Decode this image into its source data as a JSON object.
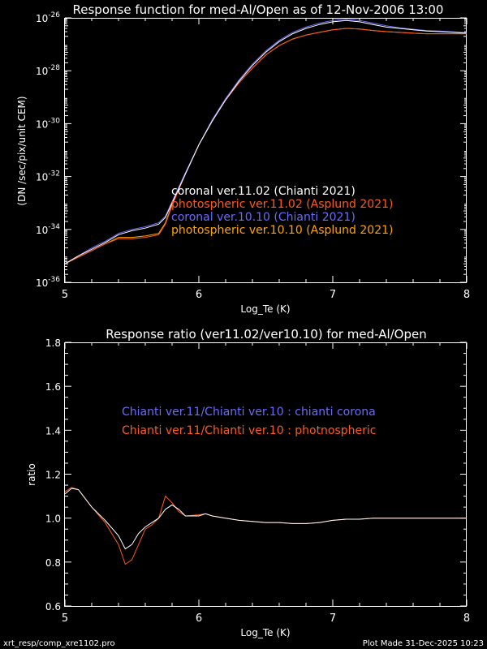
{
  "footer": {
    "left": "xrt_resp/comp_xre1102.pro",
    "right": "Plot Made 31-Dec-2025 10:23"
  },
  "chart_data": [
    {
      "type": "line",
      "title": "Response function for med-Al/Open as of 12-Nov-2006 13:00",
      "xlabel": "Log_Te (K)",
      "ylabel": "(DN /sec/pix/unit CEM)",
      "xlim": [
        5,
        8
      ],
      "ylim_log10": [
        -36,
        -26
      ],
      "yscale": "log",
      "x_ticks": [
        "5",
        "6",
        "7",
        "8"
      ],
      "y_ticks": [
        {
          "base": "10",
          "exp": "-26",
          "log10": -26
        },
        {
          "base": "10",
          "exp": "-28",
          "log10": -28
        },
        {
          "base": "10",
          "exp": "-30",
          "log10": -30
        },
        {
          "base": "10",
          "exp": "-32",
          "log10": -32
        },
        {
          "base": "10",
          "exp": "-34",
          "log10": -34
        },
        {
          "base": "10",
          "exp": "-36",
          "log10": -36
        }
      ],
      "legend": [
        {
          "label": "coronal ver.11.02 (Chianti 2021)",
          "color": "#ffffff"
        },
        {
          "label": "photospheric ver.11.02 (Asplund 2021)",
          "color": "#ff5a1e"
        },
        {
          "label": "coronal ver.10.10 (Chianti 2021)",
          "color": "#6a6aff"
        },
        {
          "label": "photospheric ver.10.10 (Asplund 2021)",
          "color": "#ffa500"
        }
      ],
      "series": [
        {
          "name": "coronal ver.11.02 (Chianti 2021)",
          "color": "#ffffff",
          "x": [
            5.0,
            5.1,
            5.2,
            5.3,
            5.4,
            5.5,
            5.6,
            5.7,
            5.75,
            5.8,
            5.9,
            6.0,
            6.1,
            6.2,
            6.3,
            6.4,
            6.5,
            6.6,
            6.7,
            6.8,
            6.9,
            7.0,
            7.1,
            7.2,
            7.3,
            7.4,
            7.5,
            7.6,
            7.7,
            7.8,
            7.9,
            8.0
          ],
          "log10_y": [
            -35.3,
            -35.0,
            -34.75,
            -34.5,
            -34.2,
            -34.05,
            -33.95,
            -33.8,
            -33.55,
            -33.0,
            -31.9,
            -30.8,
            -29.9,
            -29.1,
            -28.4,
            -27.8,
            -27.3,
            -26.9,
            -26.6,
            -26.4,
            -26.25,
            -26.15,
            -26.1,
            -26.15,
            -26.25,
            -26.35,
            -26.4,
            -26.45,
            -26.5,
            -26.52,
            -26.55,
            -26.58
          ]
        },
        {
          "name": "photospheric ver.11.02 (Asplund 2021)",
          "color": "#ff5a1e",
          "x": [
            5.0,
            5.1,
            5.2,
            5.3,
            5.4,
            5.5,
            5.6,
            5.7,
            5.75,
            5.8,
            5.9,
            6.0,
            6.1,
            6.2,
            6.3,
            6.4,
            6.5,
            6.6,
            6.7,
            6.8,
            6.9,
            7.0,
            7.1,
            7.2,
            7.3,
            7.4,
            7.5,
            7.6,
            7.7,
            7.8,
            7.9,
            8.0
          ],
          "log10_y": [
            -35.3,
            -35.05,
            -34.8,
            -34.55,
            -34.35,
            -34.35,
            -34.3,
            -34.2,
            -33.8,
            -33.1,
            -31.9,
            -30.8,
            -29.9,
            -29.1,
            -28.45,
            -27.9,
            -27.4,
            -27.05,
            -26.8,
            -26.65,
            -26.55,
            -26.45,
            -26.4,
            -26.42,
            -26.48,
            -26.52,
            -26.55,
            -26.58,
            -26.6,
            -26.6,
            -26.6,
            -26.6
          ]
        },
        {
          "name": "coronal ver.10.10 (Chianti 2021)",
          "color": "#6a6aff",
          "x": [
            5.0,
            5.1,
            5.2,
            5.3,
            5.4,
            5.5,
            5.6,
            5.7,
            5.75,
            5.8,
            5.9,
            6.0,
            6.1,
            6.2,
            6.3,
            6.4,
            6.5,
            6.6,
            6.7,
            6.8,
            6.9,
            7.0,
            7.1,
            7.2,
            7.3,
            7.4,
            7.5,
            7.6,
            7.7,
            7.8,
            7.9,
            8.0
          ],
          "log10_y": [
            -35.3,
            -35.0,
            -34.7,
            -34.45,
            -34.15,
            -34.0,
            -33.9,
            -33.75,
            -33.5,
            -32.95,
            -31.85,
            -30.8,
            -29.85,
            -29.05,
            -28.35,
            -27.75,
            -27.25,
            -26.85,
            -26.55,
            -26.35,
            -26.2,
            -26.1,
            -26.05,
            -26.1,
            -26.2,
            -26.3,
            -26.38,
            -26.43,
            -26.48,
            -26.5,
            -26.53,
            -26.56
          ]
        },
        {
          "name": "photospheric ver.10.10 (Asplund 2021)",
          "color": "#ffa500",
          "x": [
            5.0,
            5.1,
            5.2,
            5.3,
            5.4,
            5.5,
            5.6,
            5.7,
            5.75,
            5.8,
            5.9,
            6.0,
            6.1,
            6.2,
            6.3,
            6.4,
            6.5,
            6.6,
            6.7,
            6.8,
            6.9,
            7.0,
            7.1,
            7.2,
            7.3,
            7.4,
            7.5,
            7.6,
            7.7,
            7.8,
            7.9,
            8.0
          ],
          "log10_y": [
            -35.3,
            -35.05,
            -34.8,
            -34.55,
            -34.3,
            -34.3,
            -34.25,
            -34.15,
            -33.75,
            -33.05,
            -31.9,
            -30.8,
            -29.9,
            -29.1,
            -28.45,
            -27.9,
            -27.4,
            -27.05,
            -26.8,
            -26.65,
            -26.55,
            -26.45,
            -26.4,
            -26.42,
            -26.48,
            -26.52,
            -26.55,
            -26.58,
            -26.6,
            -26.6,
            -26.6,
            -26.6
          ]
        }
      ]
    },
    {
      "type": "line",
      "title": "Response ratio (ver11.02/ver10.10) for med-Al/Open",
      "xlabel": "Log_Te (K)",
      "ylabel": "ratio",
      "xlim": [
        5,
        8
      ],
      "ylim": [
        0.6,
        1.8
      ],
      "x_ticks": [
        "5",
        "6",
        "7",
        "8"
      ],
      "y_ticks": [
        "0.6",
        "0.8",
        "1.0",
        "1.2",
        "1.4",
        "1.6",
        "1.8"
      ],
      "legend": [
        {
          "label": "Chianti ver.11/Chianti ver.10 : chianti corona",
          "color": "#6a6aff"
        },
        {
          "label": "Chianti ver.11/Chianti ver.10 : photnospheric",
          "color": "#ff5a1e"
        }
      ],
      "series": [
        {
          "name": "Chianti ver.11/Chianti ver.10 : chianti corona",
          "color": "#ffffff",
          "x": [
            5.0,
            5.05,
            5.1,
            5.2,
            5.3,
            5.4,
            5.45,
            5.5,
            5.55,
            5.6,
            5.65,
            5.7,
            5.75,
            5.8,
            5.85,
            5.9,
            6.0,
            6.05,
            6.1,
            6.2,
            6.3,
            6.4,
            6.5,
            6.6,
            6.7,
            6.8,
            6.9,
            7.0,
            7.1,
            7.2,
            7.3,
            7.4,
            7.5,
            7.6,
            7.7,
            7.8,
            7.9,
            8.0
          ],
          "y": [
            1.11,
            1.135,
            1.13,
            1.05,
            0.99,
            0.92,
            0.86,
            0.88,
            0.93,
            0.96,
            0.98,
            1.0,
            1.04,
            1.06,
            1.04,
            1.01,
            1.01,
            1.02,
            1.01,
            1.0,
            0.99,
            0.985,
            0.98,
            0.98,
            0.975,
            0.975,
            0.98,
            0.99,
            0.995,
            0.995,
            1.0,
            1.0,
            1.0,
            1.0,
            1.0,
            1.0,
            1.0,
            1.0
          ]
        },
        {
          "name": "Chianti ver.11/Chianti ver.10 : photnospheric",
          "color": "#ff5a1e",
          "x": [
            5.0,
            5.05,
            5.1,
            5.2,
            5.3,
            5.4,
            5.45,
            5.5,
            5.55,
            5.6,
            5.65,
            5.7,
            5.75,
            5.8,
            5.85,
            5.9,
            6.0,
            6.05,
            6.1,
            6.2,
            6.3,
            6.4,
            6.5,
            6.6,
            6.7,
            6.8,
            6.9,
            7.0,
            7.1,
            7.2,
            7.3,
            7.4,
            7.5,
            7.6,
            7.7,
            7.8,
            7.9,
            8.0
          ],
          "y": [
            1.12,
            1.14,
            1.13,
            1.05,
            0.98,
            0.88,
            0.79,
            0.81,
            0.88,
            0.95,
            0.97,
            1.0,
            1.1,
            1.07,
            1.03,
            1.01,
            1.015,
            1.02,
            1.01,
            1.0,
            0.99,
            0.985,
            0.98,
            0.98,
            0.975,
            0.975,
            0.98,
            0.99,
            0.995,
            0.995,
            1.0,
            1.0,
            1.0,
            1.0,
            1.0,
            1.0,
            1.0,
            1.0
          ]
        }
      ]
    }
  ]
}
